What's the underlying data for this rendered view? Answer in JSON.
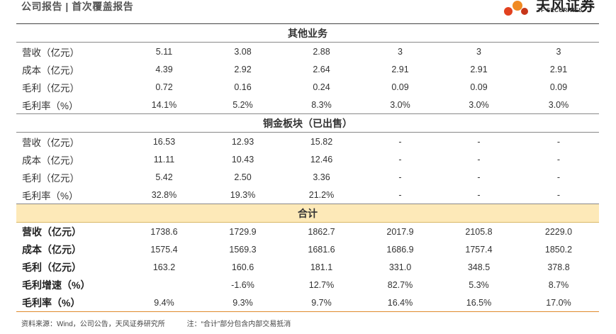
{
  "header": {
    "title": "公司报告 | 首次覆盖报告",
    "logo_cn": "天风证券",
    "logo_en": "TF SECURITIES"
  },
  "sections": [
    {
      "title": "其他业务",
      "rows": [
        {
          "label": "营收（亿元）",
          "values": [
            "5.11",
            "3.08",
            "2.88",
            "3",
            "3",
            "3"
          ]
        },
        {
          "label": "成本（亿元）",
          "values": [
            "4.39",
            "2.92",
            "2.64",
            "2.91",
            "2.91",
            "2.91"
          ]
        },
        {
          "label": "毛利（亿元）",
          "values": [
            "0.72",
            "0.16",
            "0.24",
            "0.09",
            "0.09",
            "0.09"
          ]
        },
        {
          "label": "毛利率（%）",
          "values": [
            "14.1%",
            "5.2%",
            "8.3%",
            "3.0%",
            "3.0%",
            "3.0%"
          ]
        }
      ]
    },
    {
      "title": "铜金板块（已出售）",
      "rows": [
        {
          "label": "营收（亿元）",
          "values": [
            "16.53",
            "12.93",
            "15.82",
            "-",
            "-",
            "-"
          ]
        },
        {
          "label": "成本（亿元）",
          "values": [
            "11.11",
            "10.43",
            "12.46",
            "-",
            "-",
            "-"
          ]
        },
        {
          "label": "毛利（亿元）",
          "values": [
            "5.42",
            "2.50",
            "3.36",
            "-",
            "-",
            "-"
          ]
        },
        {
          "label": "毛利率（%）",
          "values": [
            "32.8%",
            "19.3%",
            "21.2%",
            "-",
            "-",
            "-"
          ]
        }
      ]
    },
    {
      "title": "合计",
      "rows": [
        {
          "label": "营收（亿元）",
          "values": [
            "1738.6",
            "1729.9",
            "1862.7",
            "2017.9",
            "2105.8",
            "2229.0"
          ]
        },
        {
          "label": "成本（亿元）",
          "values": [
            "1575.4",
            "1569.3",
            "1681.6",
            "1686.9",
            "1757.4",
            "1850.2"
          ]
        },
        {
          "label": "毛利（亿元）",
          "values": [
            "163.2",
            "160.6",
            "181.1",
            "331.0",
            "348.5",
            "378.8"
          ]
        },
        {
          "label": "毛利增速（%）",
          "values": [
            "",
            "-1.6%",
            "12.7%",
            "82.7%",
            "5.3%",
            "8.7%"
          ]
        },
        {
          "label": "毛利率（%）",
          "values": [
            "9.4%",
            "9.3%",
            "9.7%",
            "16.4%",
            "16.5%",
            "17.0%"
          ]
        }
      ]
    }
  ],
  "footer": {
    "source": "资料来源：Wind，公司公告，天风证券研究所",
    "note": "注：“合计”部分包含内部交易抵消"
  }
}
